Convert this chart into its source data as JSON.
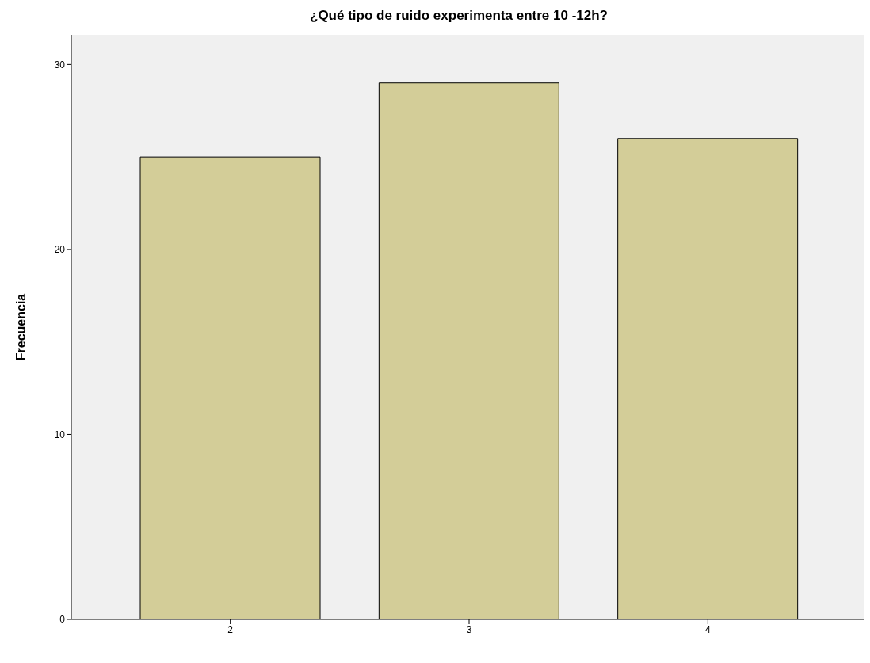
{
  "chart_data": {
    "type": "bar",
    "title": "¿Qué tipo de ruido experimenta entre 10 -12h?",
    "ylabel": "Frecuencia",
    "categories": [
      "2",
      "3",
      "4"
    ],
    "values": [
      25,
      29,
      26
    ],
    "color": "#d3cd98",
    "ylim": [
      0,
      31.6
    ],
    "yticks": [
      0,
      10,
      20,
      30
    ]
  }
}
